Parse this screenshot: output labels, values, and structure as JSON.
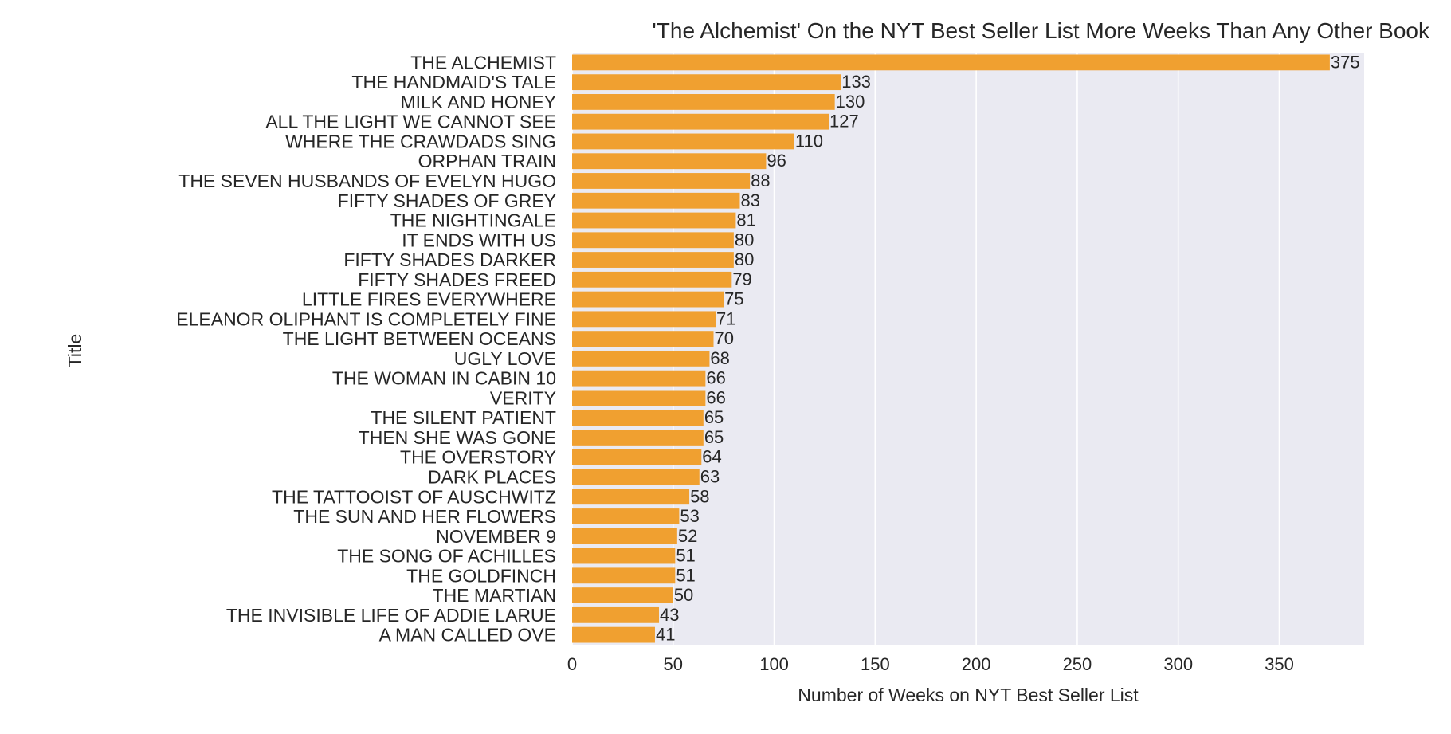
{
  "chart_data": {
    "type": "bar",
    "orientation": "horizontal",
    "title": "'The Alchemist' On the NYT Best Seller List More Weeks Than Any Other Book",
    "xlabel": "Number of Weeks on NYT Best Seller List",
    "ylabel": "Title",
    "xlim": [
      0,
      392
    ],
    "xticks": [
      0,
      50,
      100,
      150,
      200,
      250,
      300,
      350
    ],
    "grid": true,
    "legend": "none",
    "bar_color": "#f0a030",
    "background_color": "#eaeaf2",
    "grid_color": "#ffffff",
    "categories": [
      "THE ALCHEMIST",
      "THE HANDMAID'S TALE",
      "MILK AND HONEY",
      "ALL THE LIGHT WE CANNOT SEE",
      "WHERE THE CRAWDADS SING",
      "ORPHAN TRAIN",
      "THE SEVEN HUSBANDS OF EVELYN HUGO",
      "FIFTY SHADES OF GREY",
      "THE NIGHTINGALE",
      "IT ENDS WITH US",
      "FIFTY SHADES DARKER",
      "FIFTY SHADES FREED",
      "LITTLE FIRES EVERYWHERE",
      "ELEANOR OLIPHANT IS COMPLETELY FINE",
      "THE LIGHT BETWEEN OCEANS",
      "UGLY LOVE",
      "THE WOMAN IN CABIN 10",
      "VERITY",
      "THE SILENT PATIENT",
      "THEN SHE WAS GONE",
      "THE OVERSTORY",
      "DARK PLACES",
      "THE TATTOOIST OF AUSCHWITZ",
      "THE SUN AND HER FLOWERS",
      "NOVEMBER 9",
      "THE SONG OF ACHILLES",
      "THE GOLDFINCH",
      "THE MARTIAN",
      "THE INVISIBLE LIFE OF ADDIE LARUE",
      "A MAN CALLED OVE"
    ],
    "values": [
      375,
      133,
      130,
      127,
      110,
      96,
      88,
      83,
      81,
      80,
      80,
      79,
      75,
      71,
      70,
      68,
      66,
      66,
      65,
      65,
      64,
      63,
      58,
      53,
      52,
      51,
      51,
      50,
      43,
      41
    ]
  }
}
